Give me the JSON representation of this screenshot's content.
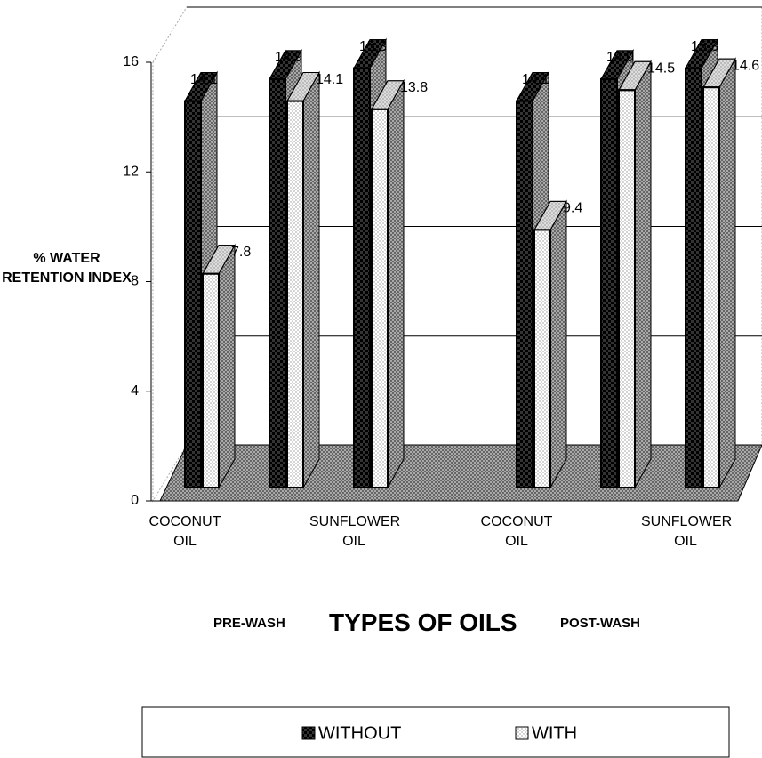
{
  "chart_data": {
    "type": "bar3d",
    "y_label": "% WATER RETENTION INDEX",
    "x_label": "TYPES OF OILS",
    "x_group_labels": [
      "PRE-WASH",
      "POST-WASH"
    ],
    "categories": [
      "COCONUT OIL",
      null,
      "SUNFLOWER OIL",
      "COCONUT OIL",
      null,
      "SUNFLOWER OIL"
    ],
    "series": [
      {
        "name": "WITHOUT",
        "color": "#333333",
        "values": [
          14.1,
          14.9,
          15.3,
          14.1,
          14.9,
          15.3
        ]
      },
      {
        "name": "WITH",
        "color": "#ffffff",
        "values": [
          7.8,
          14.1,
          13.8,
          9.4,
          14.5,
          14.6
        ]
      }
    ],
    "ylim": [
      0,
      16
    ],
    "yticks": [
      0,
      4,
      8,
      12,
      16
    ],
    "grid": true,
    "legend": "bottom"
  }
}
